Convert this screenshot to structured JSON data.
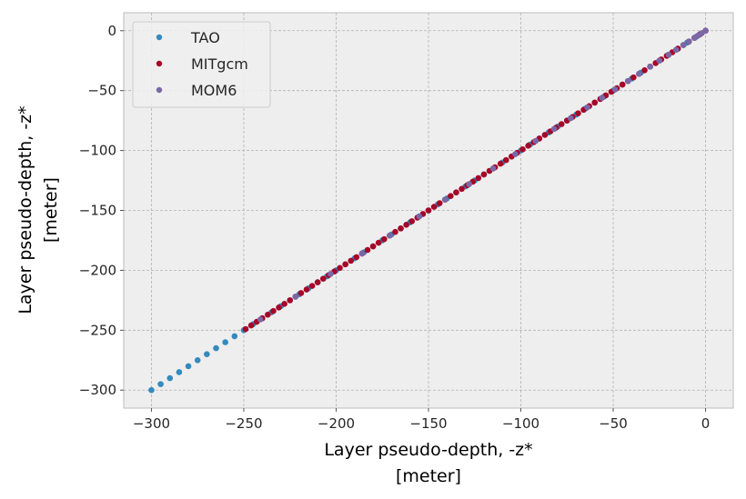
{
  "chart_data": {
    "type": "scatter",
    "xlabel": [
      "Layer pseudo-depth, -z*",
      "[meter]"
    ],
    "ylabel": [
      "Layer pseudo-depth, -z*",
      "[meter]"
    ],
    "xlim": [
      -315,
      15
    ],
    "ylim": [
      -315,
      15
    ],
    "x_ticks": [
      -300,
      -250,
      -200,
      -150,
      -100,
      -50,
      0
    ],
    "y_ticks": [
      -300,
      -250,
      -200,
      -150,
      -100,
      -50,
      0
    ],
    "grid": true,
    "legend_position": "top-left",
    "series": [
      {
        "name": "TAO",
        "color": "#348abd",
        "range": [
          -300,
          0
        ],
        "step": 5
      },
      {
        "name": "MITgcm",
        "color": "#a60628",
        "range": [
          -249,
          0
        ],
        "step": 3
      },
      {
        "name": "MOM6",
        "color": "#7a68a6",
        "values": [
          -241,
          -222,
          -203,
          -186,
          -171,
          -155,
          -141,
          -128,
          -115,
          -103,
          -92,
          -82,
          -73,
          -64,
          -56,
          -49,
          -42,
          -36,
          -30,
          -25,
          -20,
          -16,
          -12,
          -9,
          -6,
          -4,
          -2,
          0
        ]
      }
    ]
  }
}
